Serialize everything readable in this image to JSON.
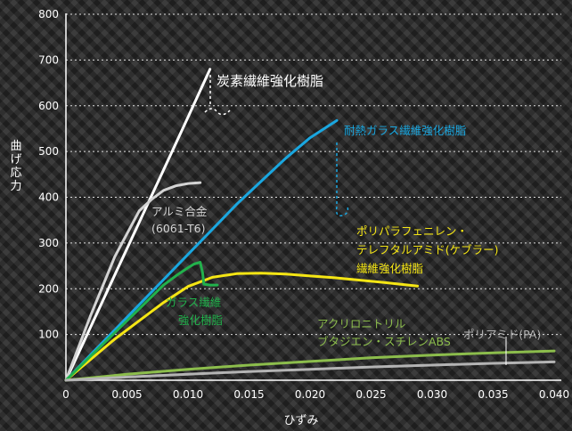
{
  "chart_data": {
    "type": "line",
    "xlabel": "ひずみ",
    "ylabel": "曲げ応力",
    "xlim": [
      0,
      0.04
    ],
    "ylim": [
      0,
      800
    ],
    "x_ticks": [
      "0",
      "0.005",
      "0.010",
      "0.015",
      "0.020",
      "0.025",
      "0.030",
      "0.035",
      "0.040"
    ],
    "y_ticks": [
      "100",
      "200",
      "300",
      "400",
      "500",
      "600",
      "700",
      "800"
    ],
    "grid": "horizontal dashed",
    "series": [
      {
        "name": "炭素繊維強化樹脂",
        "color": "#ffffff",
        "x": [
          0,
          0.002,
          0.004,
          0.006,
          0.008,
          0.01,
          0.0118
        ],
        "y": [
          0,
          115,
          230,
          345,
          460,
          575,
          680
        ]
      },
      {
        "name": "耐熱ガラス繊維強化樹脂",
        "color": "#1aa7e0",
        "x": [
          0,
          0.002,
          0.004,
          0.006,
          0.008,
          0.01,
          0.012,
          0.014,
          0.016,
          0.018,
          0.02,
          0.0222
        ],
        "y": [
          0,
          55,
          110,
          165,
          220,
          275,
          330,
          385,
          435,
          485,
          530,
          568
        ]
      },
      {
        "name": "アルミ合金 (6061-T6)",
        "color": "#d4d4d4",
        "x": [
          0,
          0.002,
          0.004,
          0.005,
          0.006,
          0.007,
          0.008,
          0.009,
          0.01,
          0.011
        ],
        "y": [
          0,
          140,
          270,
          320,
          370,
          395,
          415,
          425,
          430,
          432
        ]
      },
      {
        "name": "ポリパラフェニレン・テレフタルアミド(ケブラー) 繊維強化樹脂",
        "color": "#f5e614",
        "x": [
          0,
          0.002,
          0.004,
          0.006,
          0.008,
          0.01,
          0.012,
          0.014,
          0.016,
          0.018,
          0.02,
          0.022,
          0.024,
          0.026,
          0.0288
        ],
        "y": [
          0,
          45,
          90,
          130,
          170,
          205,
          225,
          233,
          234,
          232,
          228,
          224,
          219,
          214,
          206
        ]
      },
      {
        "name": "ガラス繊維 強化樹脂",
        "color": "#22b14c",
        "x": [
          0,
          0.002,
          0.004,
          0.006,
          0.008,
          0.009,
          0.01,
          0.0105,
          0.011,
          0.0112,
          0.0113,
          0.0118,
          0.0124
        ],
        "y": [
          0,
          52,
          104,
          156,
          208,
          228,
          246,
          254,
          258,
          235,
          210,
          208,
          208
        ]
      },
      {
        "name": "アクリロニトリル ブタジエン・スチレンABS",
        "color": "#8cbd4c",
        "x": [
          0,
          0.005,
          0.01,
          0.015,
          0.02,
          0.025,
          0.03,
          0.035,
          0.04
        ],
        "y": [
          0,
          13,
          24,
          33,
          41,
          49,
          55,
          60,
          64
        ]
      },
      {
        "name": "ポリアミド(PA)",
        "color": "#b4b4b4",
        "x": [
          0,
          0.005,
          0.01,
          0.015,
          0.02,
          0.025,
          0.03,
          0.035,
          0.04
        ],
        "y": [
          0,
          7,
          13,
          19,
          24,
          29,
          33,
          37,
          40
        ]
      }
    ]
  },
  "labels": {
    "cfrp": "炭素繊維強化樹脂",
    "heat_gfrp": "耐熱ガラス繊維強化樹脂",
    "alu_1": "アルミ合金",
    "alu_2": "(6061-T6)",
    "kevlar_1": "ポリパラフェニレン・",
    "kevlar_2": "テレフタルアミド(ケブラー)",
    "kevlar_3": "繊維強化樹脂",
    "gfrp_1": "ガラス繊維",
    "gfrp_2": "強化樹脂",
    "abs_1": "アクリロニトリル",
    "abs_2": "ブタジエン・スチレンABS",
    "pa": "ポリアミド(PA)"
  }
}
